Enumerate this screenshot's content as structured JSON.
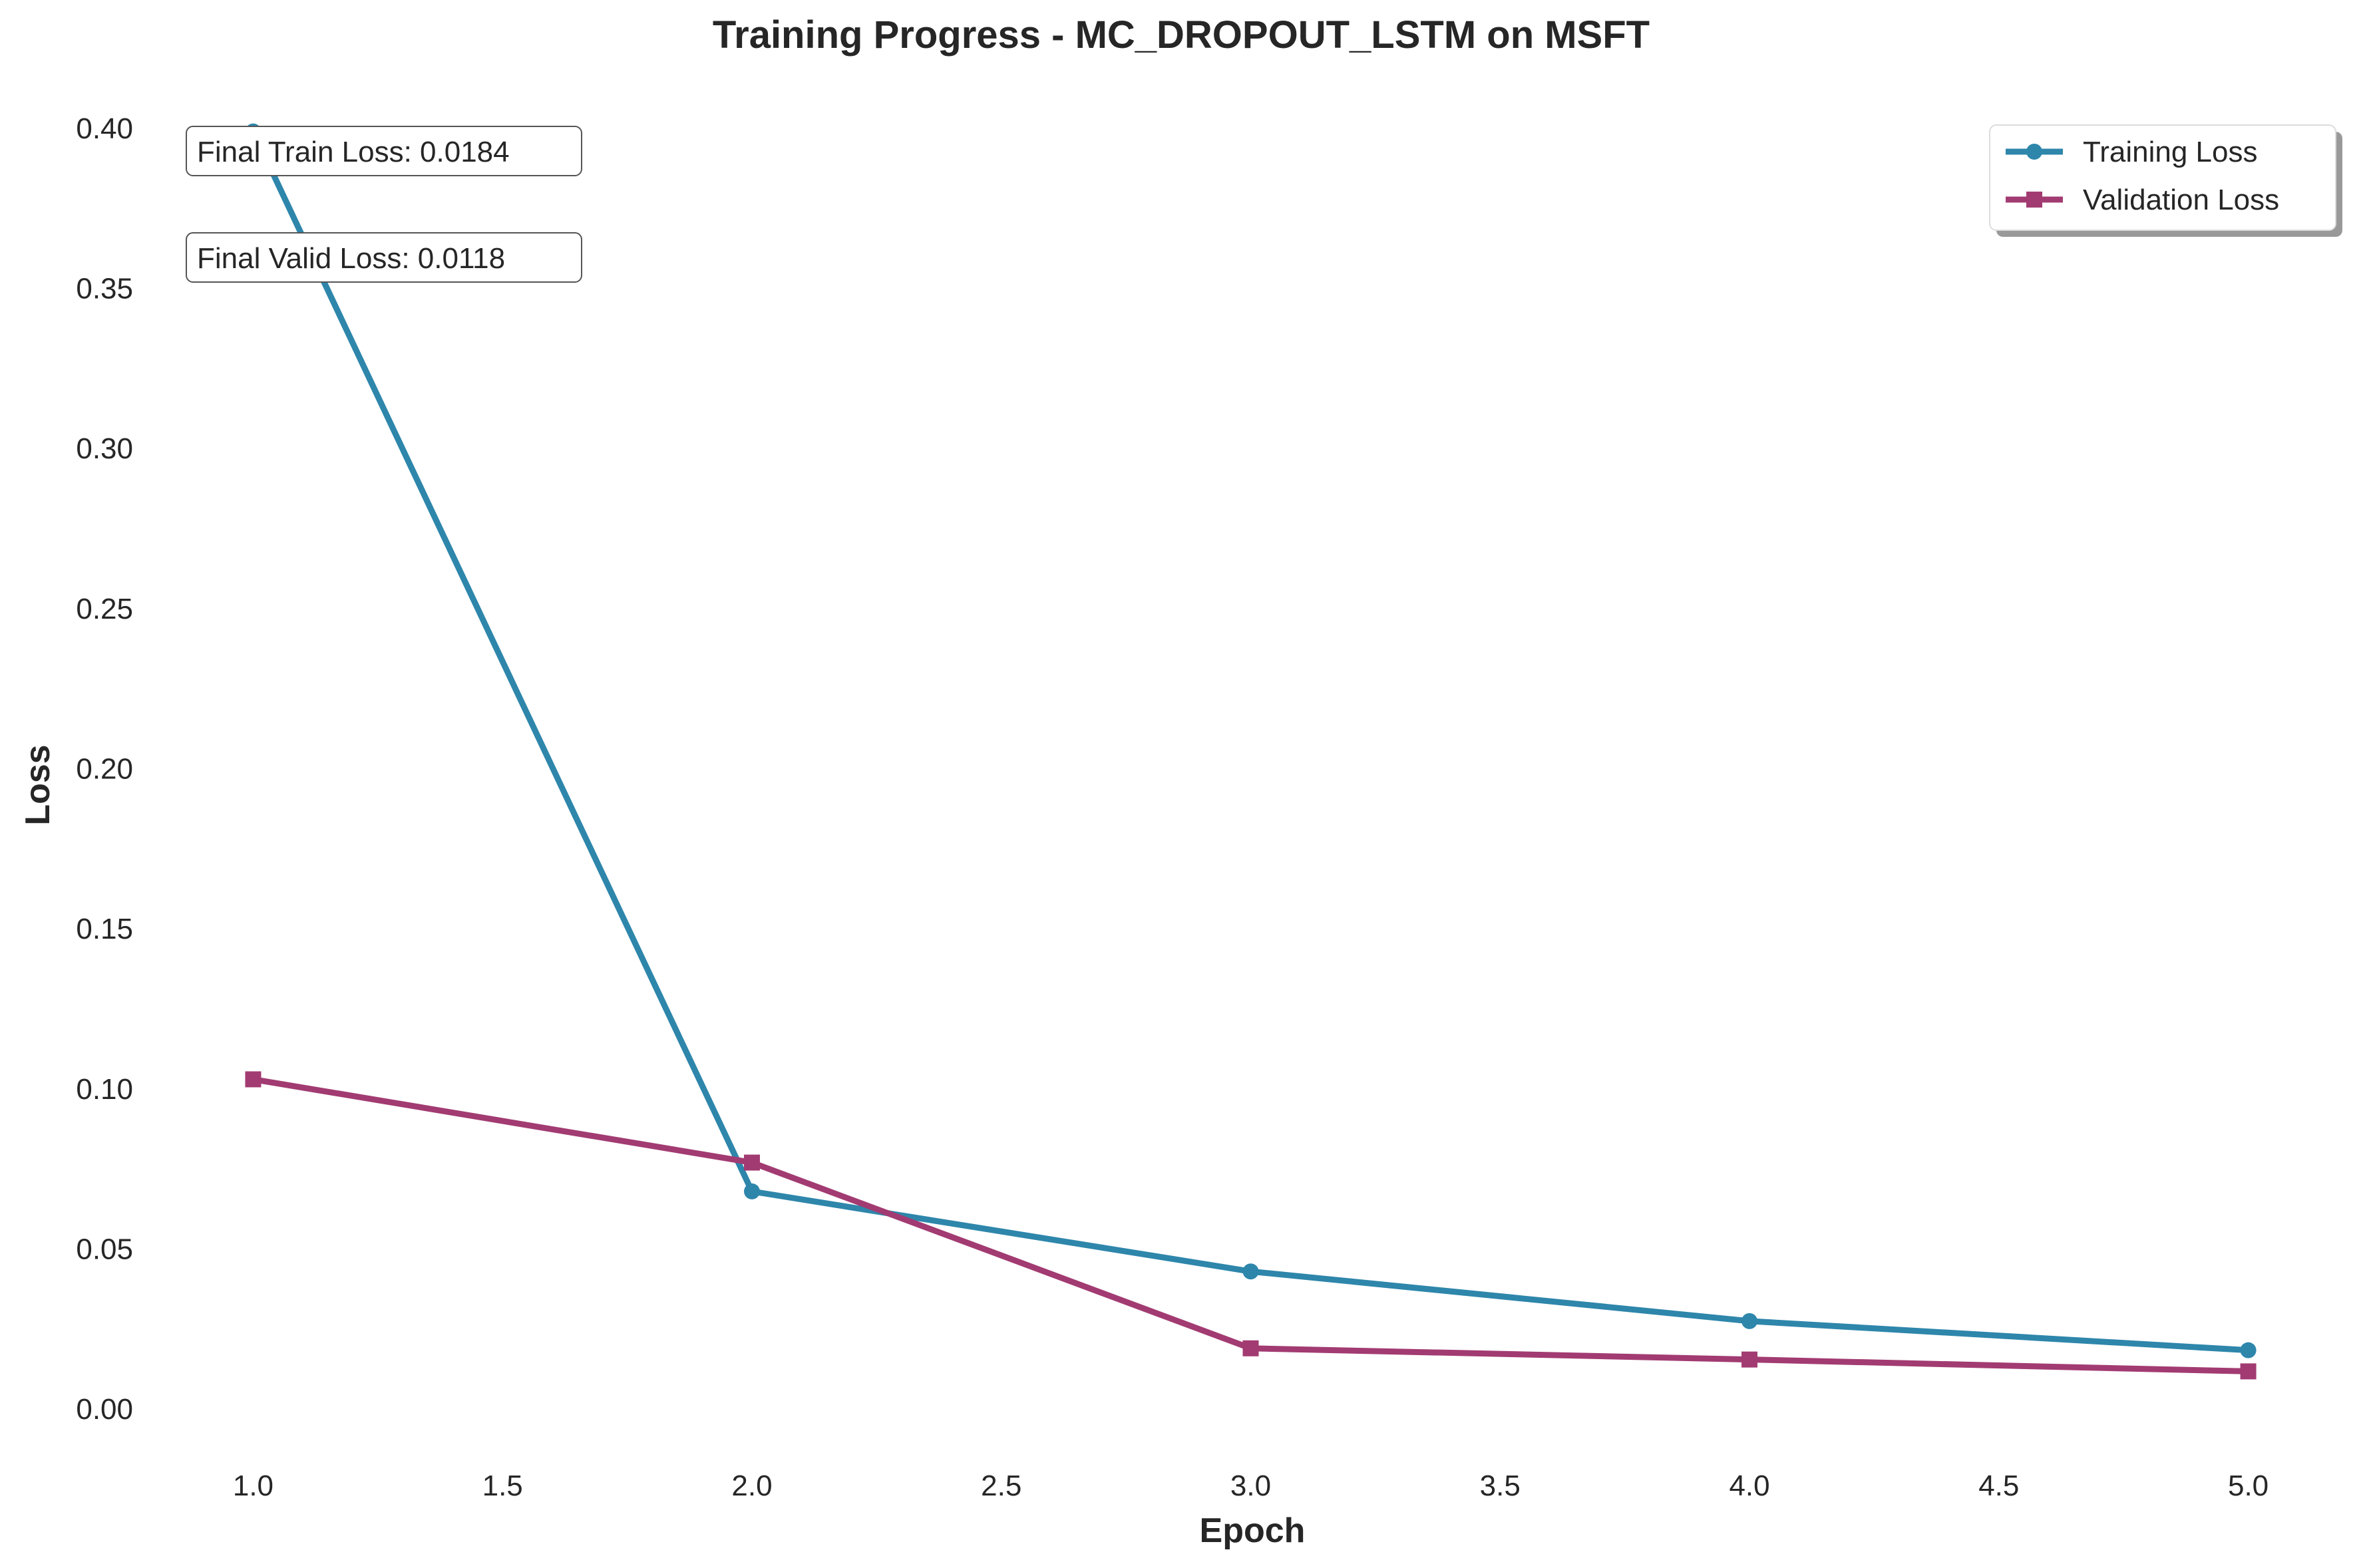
{
  "chart_data": {
    "type": "line",
    "title": "Training Progress - MC_DROPOUT_LSTM on MSFT",
    "xlabel": "Epoch",
    "ylabel": "Loss",
    "x": [
      1.0,
      2.0,
      3.0,
      4.0,
      5.0
    ],
    "xlim": [
      0.87,
      5.13
    ],
    "ylim": [
      -0.012,
      0.412
    ],
    "xticks": [
      1.0,
      1.5,
      2.0,
      2.5,
      3.0,
      3.5,
      4.0,
      4.5,
      5.0
    ],
    "xtick_labels": [
      "1.0",
      "1.5",
      "2.0",
      "2.5",
      "3.0",
      "3.5",
      "4.0",
      "4.5",
      "5.0"
    ],
    "yticks": [
      0.0,
      0.05,
      0.1,
      0.15,
      0.2,
      0.25,
      0.3,
      0.35,
      0.4
    ],
    "ytick_labels": [
      "0.00",
      "0.05",
      "0.10",
      "0.15",
      "0.20",
      "0.25",
      "0.30",
      "0.35",
      "0.40"
    ],
    "grid": false,
    "legend_position": "top-right",
    "series": [
      {
        "name": "Training Loss",
        "marker": "circle",
        "color": "#2E86AB",
        "values": [
          0.399,
          0.068,
          0.043,
          0.0275,
          0.0184
        ]
      },
      {
        "name": "Validation Loss",
        "marker": "square",
        "color": "#A23B72",
        "values": [
          0.103,
          0.077,
          0.019,
          0.0155,
          0.0118
        ]
      }
    ],
    "annotations": [
      {
        "text": "Final Train Loss: 0.0184",
        "position": "top-left"
      },
      {
        "text": "Final Valid Loss: 0.0118",
        "position": "top-left"
      }
    ]
  }
}
